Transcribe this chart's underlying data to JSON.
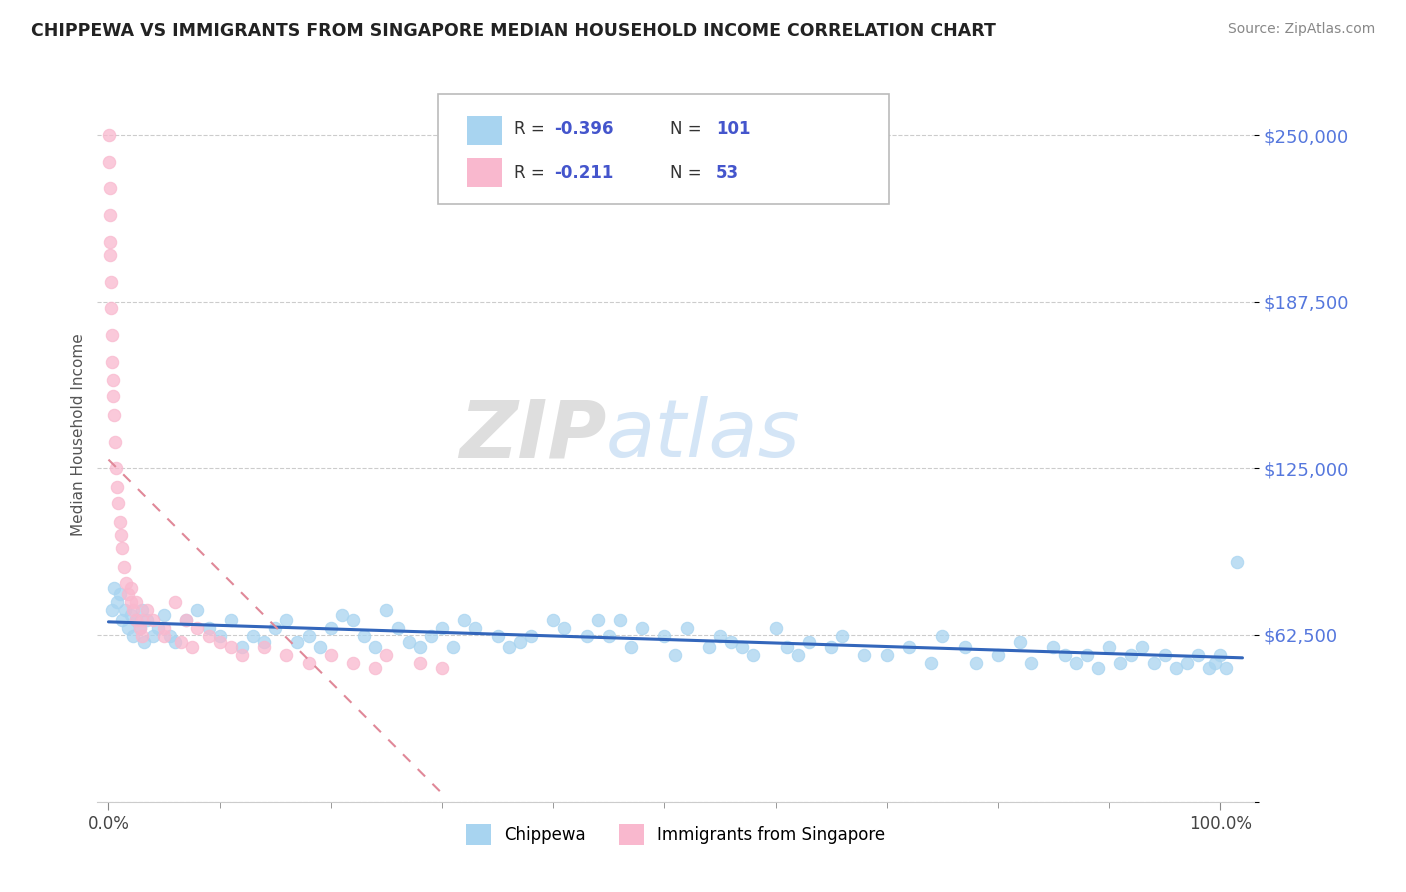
{
  "title": "CHIPPEWA VS IMMIGRANTS FROM SINGAPORE MEDIAN HOUSEHOLD INCOME CORRELATION CHART",
  "source": "Source: ZipAtlas.com",
  "ylabel": "Median Household Income",
  "yticks": [
    0,
    62500,
    125000,
    187500,
    250000
  ],
  "ytick_labels": [
    "",
    "$62,500",
    "$125,000",
    "$187,500",
    "$250,000"
  ],
  "color_chippewa": "#A8D4F0",
  "color_singapore": "#F9B8CE",
  "color_trend_chippewa": "#3366BB",
  "color_trend_singapore": "#E08898",
  "color_ytick": "#5577DD",
  "color_r_value": "#4455CC",
  "background": "#FFFFFF",
  "watermark_zip": "ZIP",
  "watermark_atlas": "atlas",
  "chippewa_x": [
    0.3,
    0.5,
    0.8,
    1.0,
    1.2,
    1.5,
    1.8,
    2.0,
    2.2,
    2.5,
    2.8,
    3.0,
    3.2,
    3.5,
    4.0,
    4.5,
    5.0,
    5.5,
    6.0,
    7.0,
    8.0,
    9.0,
    10.0,
    11.0,
    12.0,
    13.0,
    14.0,
    15.0,
    16.0,
    17.0,
    18.0,
    19.0,
    20.0,
    21.0,
    22.0,
    23.0,
    24.0,
    25.0,
    26.0,
    27.0,
    28.0,
    29.0,
    30.0,
    31.0,
    32.0,
    33.0,
    35.0,
    36.0,
    37.0,
    38.0,
    40.0,
    41.0,
    43.0,
    44.0,
    45.0,
    46.0,
    47.0,
    48.0,
    50.0,
    51.0,
    52.0,
    54.0,
    55.0,
    56.0,
    57.0,
    58.0,
    60.0,
    61.0,
    62.0,
    63.0,
    65.0,
    66.0,
    68.0,
    70.0,
    72.0,
    74.0,
    75.0,
    77.0,
    78.0,
    80.0,
    82.0,
    83.0,
    85.0,
    86.0,
    87.0,
    88.0,
    89.0,
    90.0,
    91.0,
    92.0,
    93.0,
    94.0,
    95.0,
    96.0,
    97.0,
    98.0,
    99.0,
    99.5,
    100.0,
    100.5,
    101.5
  ],
  "chippewa_y": [
    72000,
    80000,
    75000,
    78000,
    68000,
    72000,
    65000,
    70000,
    62000,
    68000,
    65000,
    72000,
    60000,
    68000,
    62000,
    65000,
    70000,
    62000,
    60000,
    68000,
    72000,
    65000,
    62000,
    68000,
    58000,
    62000,
    60000,
    65000,
    68000,
    60000,
    62000,
    58000,
    65000,
    70000,
    68000,
    62000,
    58000,
    72000,
    65000,
    60000,
    58000,
    62000,
    65000,
    58000,
    68000,
    65000,
    62000,
    58000,
    60000,
    62000,
    68000,
    65000,
    62000,
    68000,
    62000,
    68000,
    58000,
    65000,
    62000,
    55000,
    65000,
    58000,
    62000,
    60000,
    58000,
    55000,
    65000,
    58000,
    55000,
    60000,
    58000,
    62000,
    55000,
    55000,
    58000,
    52000,
    62000,
    58000,
    52000,
    55000,
    60000,
    52000,
    58000,
    55000,
    52000,
    55000,
    50000,
    58000,
    52000,
    55000,
    58000,
    52000,
    55000,
    50000,
    52000,
    55000,
    50000,
    52000,
    55000,
    50000,
    90000
  ],
  "singapore_x": [
    0.05,
    0.08,
    0.1,
    0.12,
    0.15,
    0.18,
    0.2,
    0.25,
    0.3,
    0.35,
    0.4,
    0.45,
    0.5,
    0.6,
    0.7,
    0.8,
    0.9,
    1.0,
    1.1,
    1.2,
    1.4,
    1.6,
    1.8,
    2.0,
    2.2,
    2.5,
    2.8,
    3.0,
    3.5,
    4.0,
    5.0,
    6.0,
    7.0,
    8.0,
    9.0,
    10.0,
    11.0,
    12.0,
    14.0,
    16.0,
    18.0,
    20.0,
    22.0,
    24.0,
    25.0,
    28.0,
    30.0,
    2.0,
    2.5,
    3.0,
    5.0,
    6.5,
    7.5
  ],
  "singapore_y": [
    250000,
    240000,
    230000,
    220000,
    210000,
    205000,
    195000,
    185000,
    175000,
    165000,
    158000,
    152000,
    145000,
    135000,
    125000,
    118000,
    112000,
    105000,
    100000,
    95000,
    88000,
    82000,
    78000,
    75000,
    72000,
    68000,
    65000,
    62000,
    72000,
    68000,
    62000,
    75000,
    68000,
    65000,
    62000,
    60000,
    58000,
    55000,
    58000,
    55000,
    52000,
    55000,
    52000,
    50000,
    55000,
    52000,
    50000,
    80000,
    75000,
    68000,
    65000,
    60000,
    58000
  ]
}
